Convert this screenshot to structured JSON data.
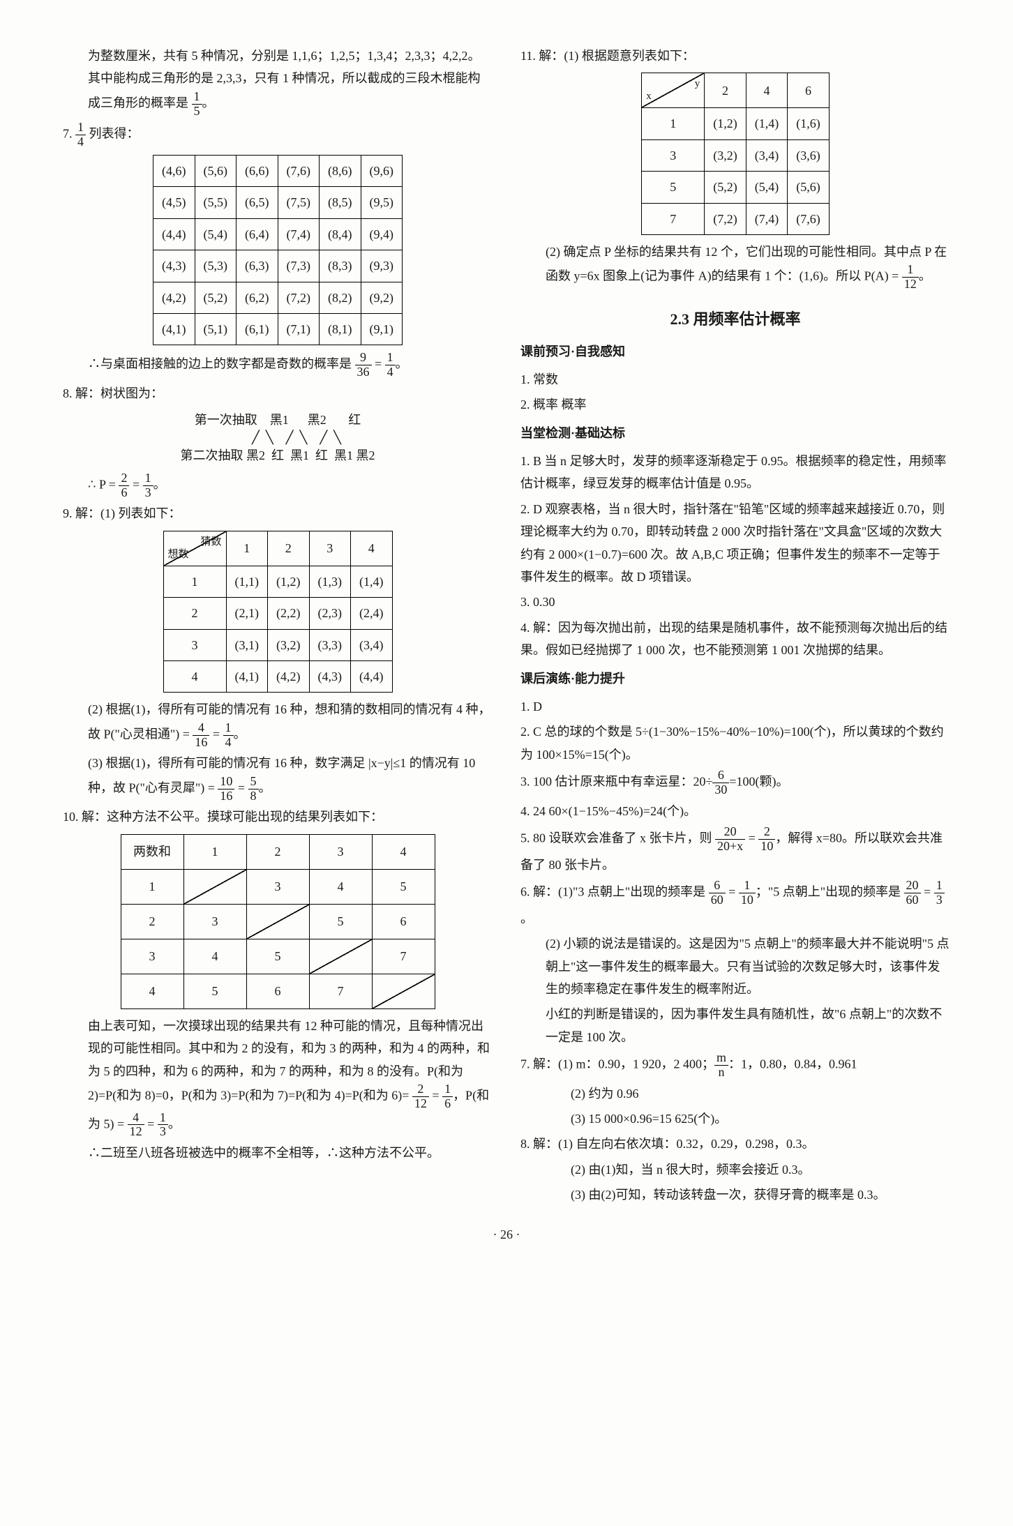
{
  "left": {
    "intro": "为整数厘米，共有 5 种情况，分别是 1,1,6；1,2,5；1,3,4；2,3,3；4,2,2。其中能构成三角形的是 2,3,3，只有 1 种情况，所以截成的三段木棍能构成三角形的概率是 ",
    "intro_frac_n": "1",
    "intro_frac_d": "5",
    "q7_label": "7. ",
    "q7_frac_n": "1",
    "q7_frac_d": "4",
    "q7_after": "  列表得：",
    "t7_rows": [
      [
        "(4,6)",
        "(5,6)",
        "(6,6)",
        "(7,6)",
        "(8,6)",
        "(9,6)"
      ],
      [
        "(4,5)",
        "(5,5)",
        "(6,5)",
        "(7,5)",
        "(8,5)",
        "(9,5)"
      ],
      [
        "(4,4)",
        "(5,4)",
        "(6,4)",
        "(7,4)",
        "(8,4)",
        "(9,4)"
      ],
      [
        "(4,3)",
        "(5,3)",
        "(6,3)",
        "(7,3)",
        "(8,3)",
        "(9,3)"
      ],
      [
        "(4,2)",
        "(5,2)",
        "(6,2)",
        "(7,2)",
        "(8,2)",
        "(9,2)"
      ],
      [
        "(4,1)",
        "(5,1)",
        "(6,1)",
        "(7,1)",
        "(8,1)",
        "(9,1)"
      ]
    ],
    "q7_conc": "∴与桌面相接触的边上的数字都是奇数的概率是 ",
    "q7_res_n": "9",
    "q7_res_d": "36",
    "q7_eq": " = ",
    "q7_res2_n": "1",
    "q7_res2_d": "4",
    "q8_label": "8. 解：树状图为：",
    "tree_l1": "第一次抽取    黑1      黑2       红",
    "tree_l2": "            ╱  ╲    ╱  ╲    ╱  ╲",
    "tree_l3": "第二次抽取 黑2  红  黑1  红  黑1 黑2",
    "q8_res": "∴ P = ",
    "q8_n1": "2",
    "q8_d1": "6",
    "q8_eq": " = ",
    "q8_n2": "1",
    "q8_d2": "3",
    "q9_label": "9. 解：(1) 列表如下：",
    "t9_diag_tl": "猜数",
    "t9_diag_br": "想数",
    "t9_head": [
      "1",
      "2",
      "3",
      "4"
    ],
    "t9_side": [
      "1",
      "2",
      "3",
      "4"
    ],
    "t9_rows": [
      [
        "(1,1)",
        "(1,2)",
        "(1,3)",
        "(1,4)"
      ],
      [
        "(2,1)",
        "(2,2)",
        "(2,3)",
        "(2,4)"
      ],
      [
        "(3,1)",
        "(3,2)",
        "(3,3)",
        "(3,4)"
      ],
      [
        "(4,1)",
        "(4,2)",
        "(4,3)",
        "(4,4)"
      ]
    ],
    "q9_2a": "(2) 根据(1)，得所有可能的情况有 16 种，想和猜的数相同的情况有 4 种，故 P(\"心灵相通\") = ",
    "q9_2_n1": "4",
    "q9_2_d1": "16",
    "q9_2_eq": " = ",
    "q9_2_n2": "1",
    "q9_2_d2": "4",
    "q9_3a": "(3) 根据(1)，得所有可能的情况有 16 种，数字满足 |x−y|≤1 的情况有 10 种，故 P(\"心有灵犀\") = ",
    "q9_3_n1": "10",
    "q9_3_d1": "16",
    "q9_3_eq": " = ",
    "q9_3_n2": "5",
    "q9_3_d2": "8",
    "q10_label": "10. 解：这种方法不公平。摸球可能出现的结果列表如下：",
    "t10_head_label": "两数和",
    "t10_head": [
      "1",
      "2",
      "3",
      "4"
    ],
    "t10_side": [
      "1",
      "2",
      "3",
      "4"
    ],
    "t10_rows": [
      [
        "",
        "3",
        "4",
        "5"
      ],
      [
        "3",
        "",
        "5",
        "6"
      ],
      [
        "4",
        "5",
        "",
        "7"
      ],
      [
        "5",
        "6",
        "7",
        ""
      ]
    ],
    "q10_body": "由上表可知，一次摸球出现的结果共有 12 种可能的情况，且每种情况出现的可能性相同。其中和为 2 的没有，和为 3 的两种，和为 4 的两种，和为 5 的四种，和为 6 的两种，和为 7 的两种，和为 8 的没有。P(和为 2)=P(和为 8)=0，P(和为 3)=P(和为 7)=P(和为 4)=P(和为 6)= ",
    "q10_n1": "2",
    "q10_d1": "12",
    "q10_eq1": " = ",
    "q10_n2": "1",
    "q10_d2": "6",
    "q10_mid": "，P(和为 5) = ",
    "q10_n3": "4",
    "q10_d3": "12",
    "q10_eq2": " = ",
    "q10_n4": "1",
    "q10_d4": "3",
    "q10_end": "∴二班至八班各班被选中的概率不全相等，∴这种方法不公平。"
  },
  "right": {
    "q11_label": "11. 解：(1) 根据题意列表如下：",
    "t11_diag_tl": "y",
    "t11_diag_br": "x",
    "t11_head": [
      "2",
      "4",
      "6"
    ],
    "t11_side": [
      "1",
      "3",
      "5",
      "7"
    ],
    "t11_rows": [
      [
        "(1,2)",
        "(1,4)",
        "(1,6)"
      ],
      [
        "(3,2)",
        "(3,4)",
        "(3,6)"
      ],
      [
        "(5,2)",
        "(5,4)",
        "(5,6)"
      ],
      [
        "(7,2)",
        "(7,4)",
        "(7,6)"
      ]
    ],
    "q11_2a": "(2) 确定点 P 坐标的结果共有 12 个，它们出现的可能性相同。其中点 P 在函数 y=6x 图象上(记为事件 A)的结果有 1 个：(1,6)。所以 P(A) = ",
    "q11_n": "1",
    "q11_d": "12",
    "section_title": "2.3  用频率估计概率",
    "pre_h": "课前预习·自我感知",
    "pre_1": "1. 常数",
    "pre_2": "2. 概率    概率",
    "mid_h": "当堂检测·基础达标",
    "m1": "1. B  当 n 足够大时，发芽的频率逐渐稳定于 0.95。根据频率的稳定性，用频率估计概率，绿豆发芽的概率估计值是 0.95。",
    "m2": "2. D  观察表格，当 n 很大时，指针落在\"铅笔\"区域的频率越来越接近 0.70，则理论概率大约为 0.70，即转动转盘 2 000 次时指针落在\"文具盒\"区域的次数大约有 2 000×(1−0.7)=600 次。故 A,B,C 项正确；但事件发生的频率不一定等于事件发生的概率。故 D 项错误。",
    "m3": "3. 0.30",
    "m4": "4. 解：因为每次抛出前，出现的结果是随机事件，故不能预测每次抛出后的结果。假如已经抛掷了 1 000 次，也不能预测第 1 001 次抛掷的结果。",
    "post_h": "课后演练·能力提升",
    "p1": "1. D",
    "p2": "2. C  总的球的个数是 5÷(1−30%−15%−40%−10%)=100(个)，所以黄球的个数约为 100×15%=15(个)。",
    "p3a": "3. 100  估计原来瓶中有幸运星：20÷",
    "p3_n": "6",
    "p3_d": "30",
    "p3b": "=100(颗)。",
    "p4": "4. 24  60×(1−15%−45%)=24(个)。",
    "p5a": "5. 80  设联欢会准备了 x 张卡片，则 ",
    "p5_n1": "20",
    "p5_d1": "20+x",
    "p5_eq": " = ",
    "p5_n2": "2",
    "p5_d2": "10",
    "p5b": "，解得 x=80。所以联欢会共准备了 80 张卡片。",
    "p6a": "6. 解：(1)\"3 点朝上\"出现的频率是 ",
    "p6_n1": "6",
    "p6_d1": "60",
    "p6_eq1": " = ",
    "p6_n2": "1",
    "p6_d2": "10",
    "p6b": "；\"5 点朝上\"出现的频率是 ",
    "p6_n3": "20",
    "p6_d3": "60",
    "p6_eq2": " = ",
    "p6_n4": "1",
    "p6_d4": "3",
    "p6c": "(2) 小颖的说法是错误的。这是因为\"5 点朝上\"的频率最大并不能说明\"5 点朝上\"这一事件发生的概率最大。只有当试验的次数足够大时，该事件发生的频率稳定在事件发生的概率附近。",
    "p6d": "小红的判断是错误的，因为事件发生具有随机性，故\"6 点朝上\"的次数不一定是 100 次。",
    "p7a": "7. 解：(1) m：0.90，1 920，2 400；",
    "p7_frac_n": "m",
    "p7_frac_d": "n",
    "p7b": "：1，0.80，0.84，0.961",
    "p7c": "(2) 约为 0.96",
    "p7d": "(3) 15 000×0.96=15 625(个)。",
    "p8a": "8. 解：(1) 自左向右依次填：0.32，0.29，0.298，0.3。",
    "p8b": "(2) 由(1)知，当 n 很大时，频率会接近 0.3。",
    "p8c": "(3) 由(2)可知，转动该转盘一次，获得牙膏的概率是 0.3。"
  },
  "pagenum": "· 26 ·"
}
